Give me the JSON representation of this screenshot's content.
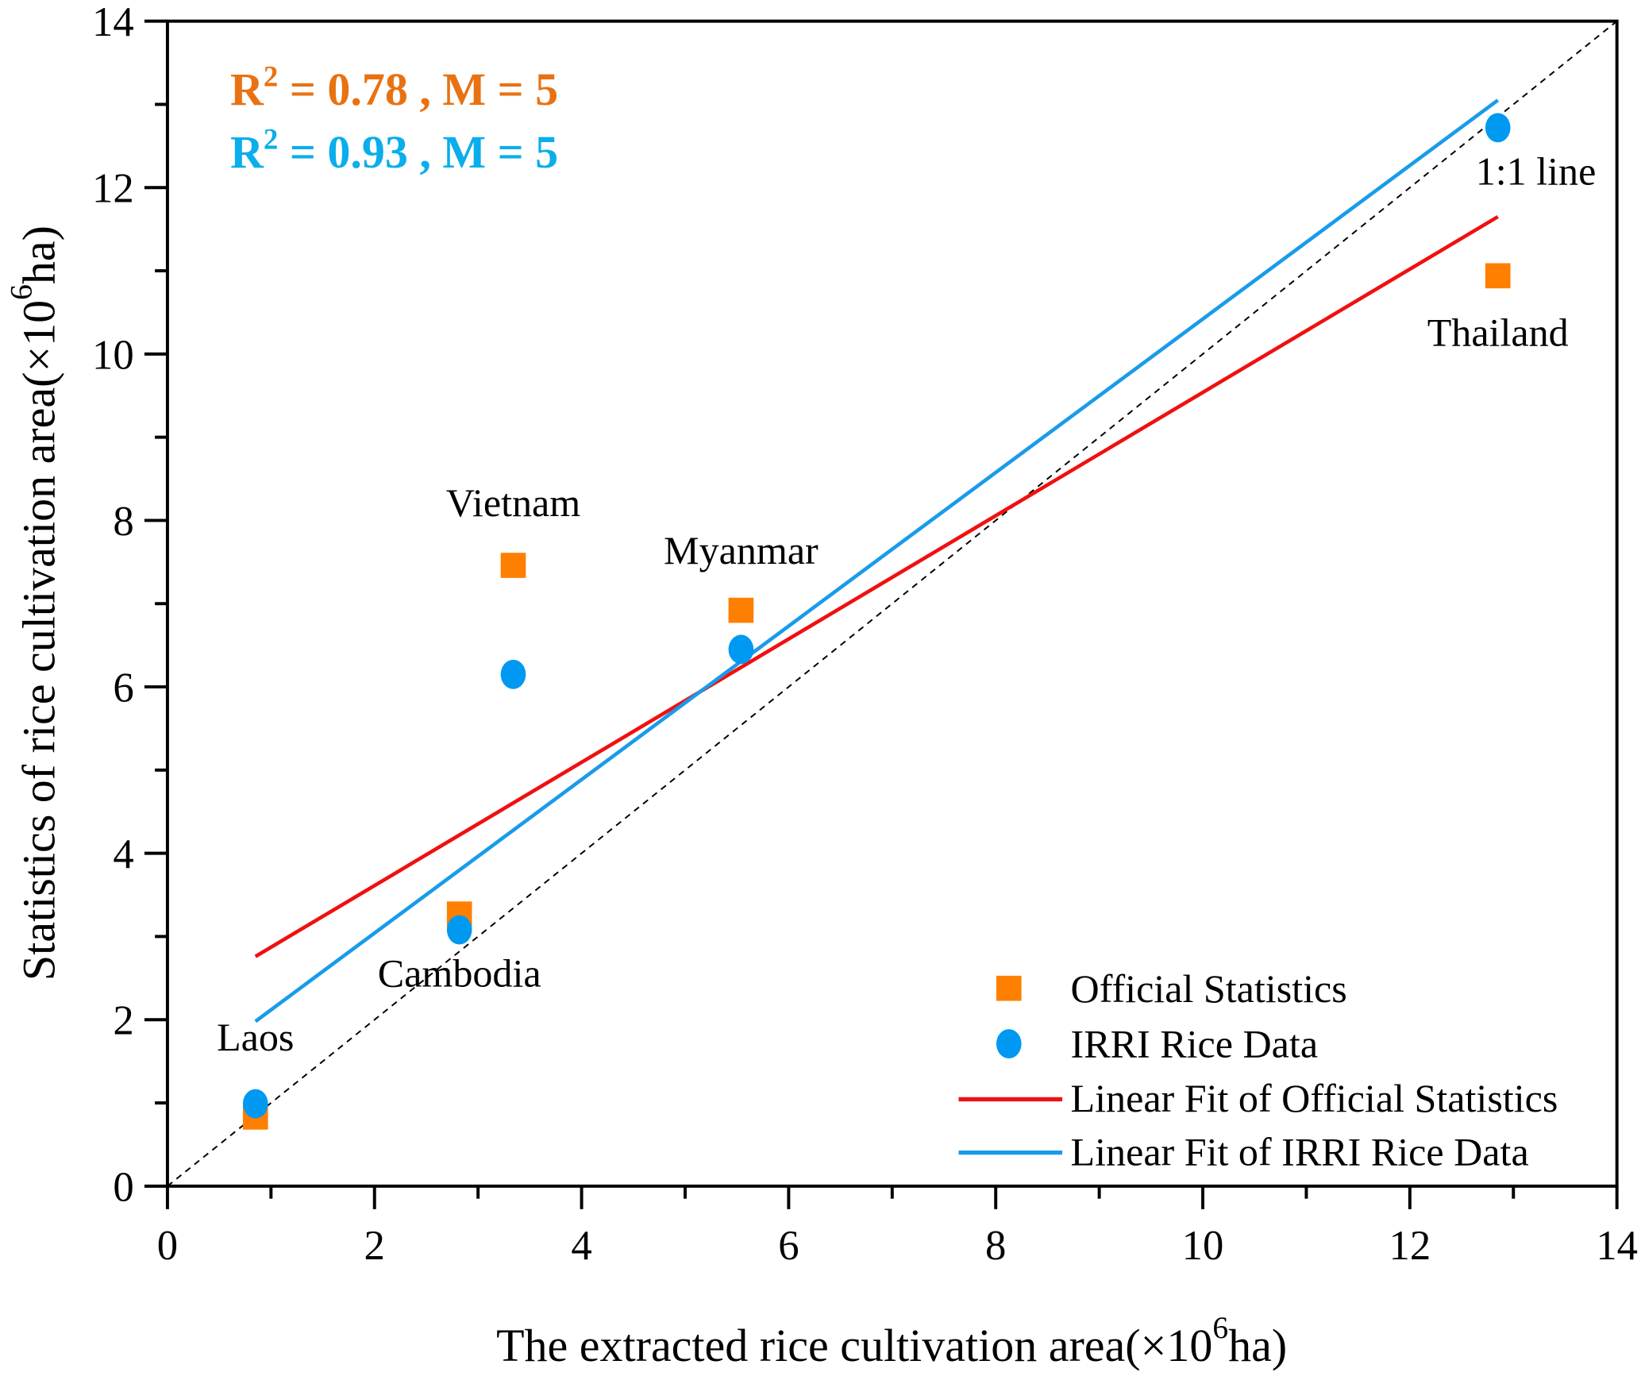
{
  "chart_data": {
    "type": "scatter",
    "title": "",
    "xlabel": "The extracted rice cultivation area(×10",
    "xlabel_sup": "6",
    "xlabel_tail": "ha)",
    "ylabel": "Statistics of rice cultivation area(×10",
    "ylabel_sup": "6",
    "ylabel_tail": "ha)",
    "xlim": [
      0,
      14
    ],
    "ylim": [
      0,
      14
    ],
    "xticks": [
      0,
      2,
      4,
      6,
      8,
      10,
      12,
      14
    ],
    "yticks": [
      0,
      2,
      4,
      6,
      8,
      10,
      12,
      14
    ],
    "grid": false,
    "legend_position": "bottom-right",
    "countries": [
      "Laos",
      "Cambodia",
      "Vietnam",
      "Myanmar",
      "Thailand"
    ],
    "x": [
      0.85,
      2.82,
      3.34,
      5.54,
      12.85
    ],
    "series": [
      {
        "name": "Official Statistics",
        "marker": "square",
        "color": "#FF7F00",
        "values": [
          0.83,
          3.27,
          7.46,
          6.92,
          10.94
        ]
      },
      {
        "name": "IRRI Rice Data",
        "marker": "circle",
        "color": "#0099F2",
        "values": [
          0.99,
          3.08,
          6.15,
          6.45,
          12.72
        ]
      }
    ],
    "fits": [
      {
        "name": "Linear Fit of Official Statistics",
        "color": "#F01010",
        "x": [
          0.85,
          12.85
        ],
        "y": [
          2.76,
          11.65
        ]
      },
      {
        "name": "Linear Fit of IRRI Rice Data",
        "color": "#1A9BEA",
        "x": [
          0.85,
          12.85
        ],
        "y": [
          1.98,
          13.05
        ]
      }
    ],
    "reference_line": {
      "label": "1:1 line",
      "x": [
        0,
        14
      ],
      "y": [
        0,
        14
      ]
    },
    "annotations": [
      {
        "text": "R",
        "sup": "2",
        "tail": " = 0.78 , M = 5",
        "color": "#E87212"
      },
      {
        "text": "R",
        "sup": "2",
        "tail": " = 0.93 , M = 5",
        "color": "#0AAEEA"
      }
    ],
    "point_labels": [
      {
        "text": "Laos",
        "x": 0.85,
        "y": 1.63
      },
      {
        "text": "Cambodia",
        "x": 2.82,
        "y": 2.4
      },
      {
        "text": "Vietnam",
        "x": 3.34,
        "y": 8.05
      },
      {
        "text": "Myanmar",
        "x": 5.54,
        "y": 7.48
      },
      {
        "text": "Thailand",
        "x": 12.85,
        "y": 10.1
      }
    ]
  }
}
